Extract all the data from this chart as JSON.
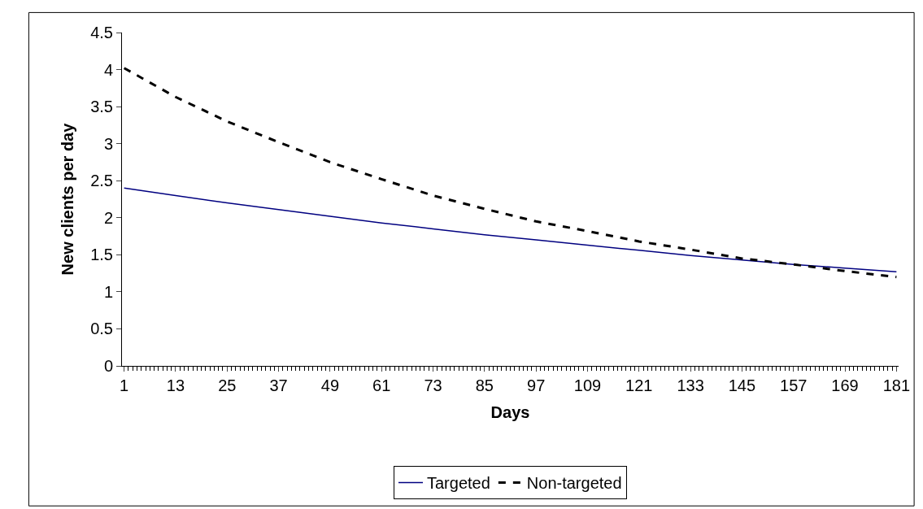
{
  "chart_data": {
    "type": "line",
    "xlabel": "Days",
    "ylabel": "New clients per day",
    "x": [
      1,
      13,
      25,
      37,
      49,
      61,
      73,
      85,
      97,
      109,
      121,
      133,
      145,
      157,
      169,
      181
    ],
    "series": [
      {
        "name": "Targeted",
        "color": "#000080",
        "line_style": "solid",
        "values": [
          2.4,
          2.3,
          2.2,
          2.11,
          2.02,
          1.93,
          1.85,
          1.77,
          1.7,
          1.63,
          1.56,
          1.49,
          1.43,
          1.37,
          1.32,
          1.27
        ]
      },
      {
        "name": "Non-targeted",
        "color": "#000000",
        "line_style": "dashed",
        "values": [
          4.02,
          3.63,
          3.3,
          3.02,
          2.75,
          2.52,
          2.3,
          2.12,
          1.95,
          1.82,
          1.68,
          1.57,
          1.45,
          1.37,
          1.28,
          1.2
        ]
      }
    ],
    "xlim": [
      0.5,
      181.5
    ],
    "xticks": [
      1,
      13,
      25,
      37,
      49,
      61,
      73,
      85,
      97,
      109,
      121,
      133,
      145,
      157,
      169,
      181
    ],
    "ylim": [
      0,
      4.5
    ],
    "yticks": [
      0,
      0.5,
      1,
      1.5,
      2,
      2.5,
      3,
      3.5,
      4,
      4.5
    ],
    "legend": "bottom",
    "marker": "none"
  }
}
